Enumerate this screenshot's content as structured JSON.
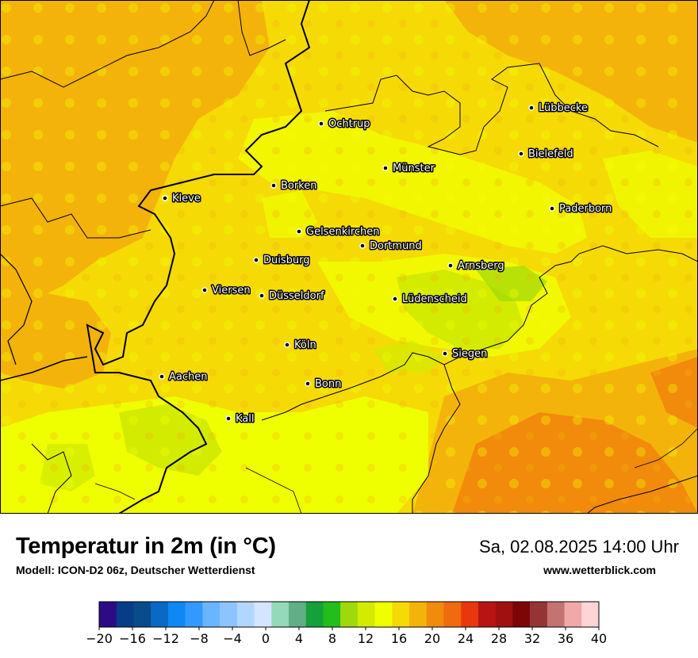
{
  "map": {
    "cities": [
      {
        "name": "Lübbecke"
      },
      {
        "name": "Ochtrup"
      },
      {
        "name": "Bielefeld"
      },
      {
        "name": "Münster"
      },
      {
        "name": "Borken"
      },
      {
        "name": "Kleve"
      },
      {
        "name": "Paderborn"
      },
      {
        "name": "Gelsenkirchen"
      },
      {
        "name": "Dortmund"
      },
      {
        "name": "Duisburg"
      },
      {
        "name": "Arnsberg"
      },
      {
        "name": "Viersen"
      },
      {
        "name": "Düsseldorf"
      },
      {
        "name": "Lüdenscheid"
      },
      {
        "name": "Köln"
      },
      {
        "name": "Siegen"
      },
      {
        "name": "Aachen"
      },
      {
        "name": "Bonn"
      },
      {
        "name": "Kall"
      }
    ]
  },
  "info": {
    "title": "Temperatur in 2m (in °C)",
    "subtitle": "Modell: ICON-D2 06z, Deutscher Wetterdienst",
    "valid_time": "Sa, 02.08.2025 14:00 Uhr",
    "website": "www.wetterblick.com"
  },
  "legend": {
    "min": -20,
    "max": 40,
    "step": 2,
    "tick_labels": [
      "−20",
      "−16",
      "−12",
      "−8",
      "−4",
      "0",
      "4",
      "8",
      "12",
      "16",
      "20",
      "24",
      "28",
      "32",
      "36",
      "40"
    ],
    "colors": [
      "#2e0a86",
      "#073c88",
      "#084c8c",
      "#0b69c5",
      "#0e88f4",
      "#3399ff",
      "#6ab5ff",
      "#8cc4ff",
      "#b1d6ff",
      "#d4e6ff",
      "#94d9b9",
      "#62ae86",
      "#16a03a",
      "#23bd1c",
      "#a0d90a",
      "#d2eb00",
      "#f0ff00",
      "#f5da06",
      "#f4b30a",
      "#f28a0c",
      "#f06a10",
      "#e8380b",
      "#b81414",
      "#a01010",
      "#7c0506",
      "#953434",
      "#c47272",
      "#f1a8a8",
      "#ffd4d4"
    ]
  }
}
